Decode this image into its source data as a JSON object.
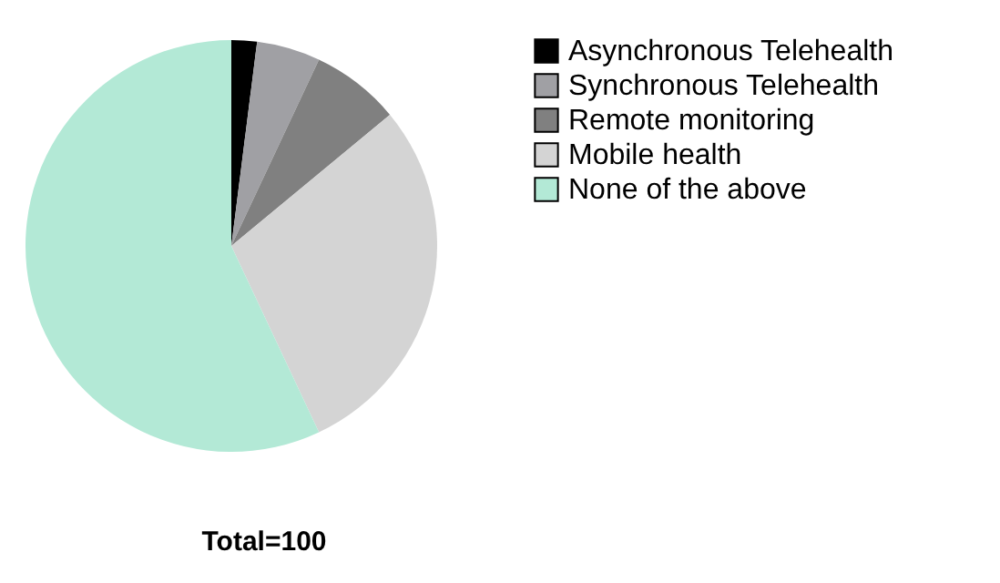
{
  "chart_data": {
    "type": "pie",
    "categories": [
      "Asynchronous Telehealth",
      "Synchronous Telehealth",
      "Remote monitoring",
      "Mobile health",
      "None of the above"
    ],
    "values": [
      2,
      5,
      7,
      29,
      57
    ],
    "colors": [
      "#000000",
      "#a0a0a4",
      "#808080",
      "#d4d4d4",
      "#b3e9d6"
    ],
    "legend": "right",
    "annotations": [
      "Total=100"
    ]
  }
}
